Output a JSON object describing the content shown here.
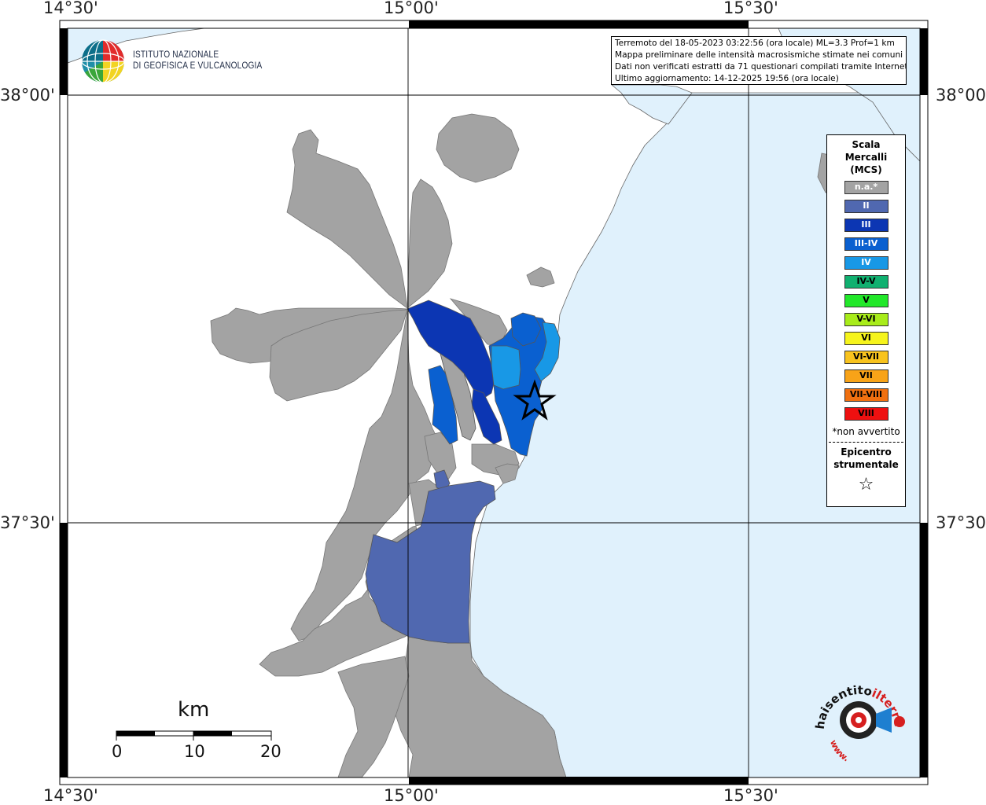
{
  "lon_labels": [
    "14°30'",
    "15°00'",
    "15°30'"
  ],
  "lat_labels": [
    "38°00'",
    "37°30'"
  ],
  "info": {
    "line1": "Terremoto del 18-05-2023 03:22:56 (ora locale) ML=3.3 Prof=1 km",
    "line2": "Mappa preliminare delle intensità macrosismiche stimate nei comuni",
    "line3": "Dati non verificati estratti da 71 questionari compilati tramite Internet.",
    "line4": "Ultimo aggiornamento: 14-12-2025 19:56 (ora locale)"
  },
  "ingv": {
    "line1": "ISTITUTO NAZIONALE",
    "line2": "DI GEOFISICA E VULCANOLOGIA"
  },
  "legend": {
    "title1": "Scala",
    "title2": "Mercalli",
    "title3": "(MCS)",
    "items": [
      {
        "label": "n.a.*",
        "color": "#a3a3a3",
        "text_color": "#ffffff"
      },
      {
        "label": "II",
        "color": "#5068b0",
        "text_color": "#ffffff"
      },
      {
        "label": "III",
        "color": "#0c36b3",
        "text_color": "#ffffff"
      },
      {
        "label": "III-IV",
        "color": "#0a60d0",
        "text_color": "#ffffff"
      },
      {
        "label": "IV",
        "color": "#1898e6",
        "text_color": "#ffffff"
      },
      {
        "label": "IV-V",
        "color": "#10b070",
        "text_color": "#000000"
      },
      {
        "label": "V",
        "color": "#22e82a",
        "text_color": "#000000"
      },
      {
        "label": "V-VI",
        "color": "#a8ec1a",
        "text_color": "#000000"
      },
      {
        "label": "VI",
        "color": "#f6f41c",
        "text_color": "#000000"
      },
      {
        "label": "VI-VII",
        "color": "#f8c31e",
        "text_color": "#000000"
      },
      {
        "label": "VII",
        "color": "#f8a318",
        "text_color": "#000000"
      },
      {
        "label": "VII-VIII",
        "color": "#f07010",
        "text_color": "#000000"
      },
      {
        "label": "VIII",
        "color": "#ee1010",
        "text_color": "#000000"
      }
    ],
    "note": "*non avvertito",
    "epi_title1": "Epicentro",
    "epi_title2": "strumentale",
    "epi_symbol": "☆"
  },
  "scalebar": {
    "unit": "km",
    "ticks": [
      "0",
      "10",
      "20"
    ]
  },
  "hsit": {
    "text1": "haisentito",
    "text2": "ilterremoto.it",
    "text3": "www."
  },
  "colors": {
    "sea": "#e0f1fc",
    "land_na": "#a3a3a3",
    "land_border": "#666666"
  }
}
